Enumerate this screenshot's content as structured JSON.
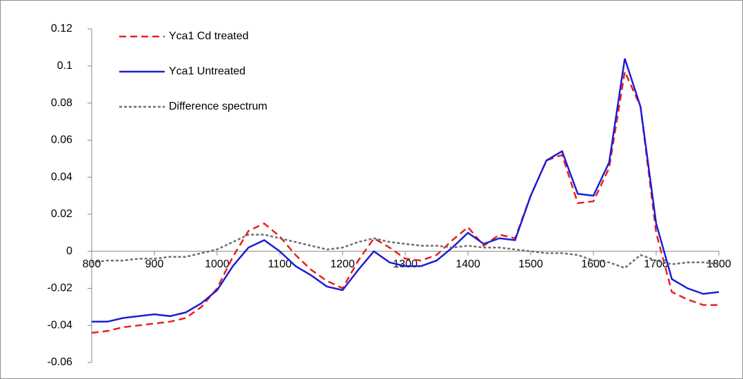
{
  "chart_data": {
    "type": "line",
    "x": [
      800,
      825,
      850,
      875,
      900,
      925,
      950,
      975,
      1000,
      1025,
      1050,
      1075,
      1100,
      1125,
      1150,
      1175,
      1200,
      1225,
      1250,
      1275,
      1300,
      1325,
      1350,
      1375,
      1400,
      1425,
      1450,
      1475,
      1500,
      1525,
      1550,
      1575,
      1600,
      1625,
      1650,
      1675,
      1700,
      1725,
      1750,
      1775,
      1800
    ],
    "series": [
      {
        "name": "Yca1 Cd treated",
        "color": "#e8201c",
        "linestyle": "dashed",
        "values": [
          -0.044,
          -0.043,
          -0.041,
          -0.04,
          -0.039,
          -0.038,
          -0.036,
          -0.03,
          -0.02,
          -0.003,
          0.011,
          0.015,
          0.008,
          -0.002,
          -0.01,
          -0.016,
          -0.02,
          -0.005,
          0.007,
          0.002,
          -0.004,
          -0.005,
          -0.002,
          0.006,
          0.013,
          0.003,
          0.009,
          0.007,
          0.03,
          0.049,
          0.052,
          0.026,
          0.027,
          0.045,
          0.097,
          0.078,
          0.01,
          -0.022,
          -0.026,
          -0.029,
          -0.029
        ]
      },
      {
        "name": "Yca1 Untreated",
        "color": "#1c1cd4",
        "linestyle": "solid",
        "values": [
          -0.038,
          -0.038,
          -0.036,
          -0.035,
          -0.034,
          -0.035,
          -0.033,
          -0.028,
          -0.021,
          -0.008,
          0.002,
          0.006,
          0.0,
          -0.008,
          -0.013,
          -0.019,
          -0.021,
          -0.01,
          0.0,
          -0.006,
          -0.008,
          -0.008,
          -0.005,
          0.002,
          0.01,
          0.004,
          0.007,
          0.006,
          0.03,
          0.049,
          0.054,
          0.031,
          0.03,
          0.048,
          0.104,
          0.078,
          0.015,
          -0.015,
          -0.02,
          -0.023,
          -0.022
        ]
      },
      {
        "name": "Difference spectrum",
        "color": "#6d6d6d",
        "linestyle": "dotted",
        "values": [
          -0.006,
          -0.005,
          -0.005,
          -0.004,
          -0.004,
          -0.003,
          -0.003,
          -0.001,
          0.001,
          0.005,
          0.009,
          0.009,
          0.007,
          0.005,
          0.003,
          0.001,
          0.002,
          0.005,
          0.007,
          0.005,
          0.004,
          0.003,
          0.003,
          0.002,
          0.003,
          0.002,
          0.002,
          0.001,
          0.0,
          -0.001,
          -0.001,
          -0.002,
          -0.005,
          -0.006,
          -0.009,
          -0.002,
          -0.005,
          -0.007,
          -0.006,
          -0.006,
          -0.007
        ]
      }
    ],
    "xlim": [
      800,
      1800
    ],
    "ylim": [
      -0.06,
      0.12
    ],
    "xticks": [
      800,
      900,
      1000,
      1100,
      1200,
      1300,
      1400,
      1500,
      1600,
      1700,
      1800
    ],
    "yticks": [
      -0.06,
      -0.04,
      -0.02,
      0,
      0.02,
      0.04,
      0.06,
      0.08,
      0.1,
      0.12
    ],
    "legend": "upper left"
  }
}
